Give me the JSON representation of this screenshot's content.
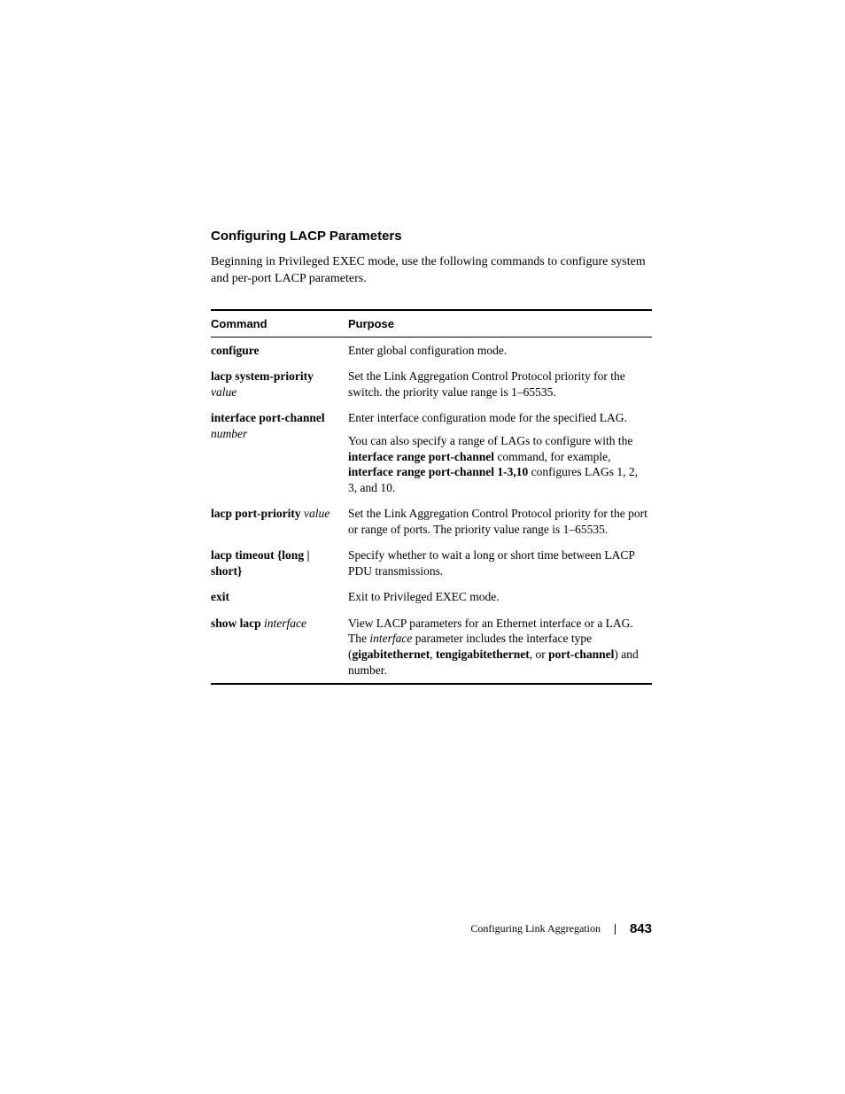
{
  "heading": "Configuring LACP Parameters",
  "intro": "Beginning in Privileged EXEC mode, use the following commands to configure system and per-port LACP parameters.",
  "table": {
    "headers": {
      "command": "Command",
      "purpose": "Purpose"
    },
    "rows": [
      {
        "command_html": "<span class='bold'>configure</span>",
        "purpose_html": "Enter global configuration mode."
      },
      {
        "command_html": "<span class='bold'>lacp system-priority</span> <span class='italic'>value</span>",
        "purpose_html": "Set the Link Aggregation Control Protocol priority for the switch. the priority value range is 1–65535."
      },
      {
        "command_html": "<span class='bold'>interface port-channel</span> <span class='italic'>number</span>",
        "purpose_html": "<div class='purpose-para'>Enter interface configuration mode for the specified LAG.</div><div class='purpose-para'>You can also specify a range of LAGs to configure with the <span class='bold'>interface range port-channel</span> command, for example, <span class='bold'>interface range port-channel 1-3,10</span> configures LAGs 1, 2, 3, and 10.</div>"
      },
      {
        "command_html": "<span class='bold'>lacp port-priority</span> <span class='italic'>value</span>",
        "purpose_html": "Set the Link Aggregation Control Protocol priority for the port or range of ports. The priority value range is 1–65535."
      },
      {
        "command_html": "<span class='bold'>lacp timeout {long | short}</span>",
        "purpose_html": "Specify whether to wait a long or short time between LACP PDU transmissions."
      },
      {
        "command_html": "<span class='bold'>exit</span>",
        "purpose_html": "Exit to Privileged EXEC mode."
      },
      {
        "command_html": "<span class='bold'>show lacp</span> <span class='italic'>interface</span>",
        "purpose_html": "View LACP parameters for an Ethernet interface or a LAG. The <span class='italic'>interface</span> parameter includes the interface type (<span class='bold'>gigabitethernet</span>, <span class='bold'>tengigabitethernet</span>, or <span class='bold'>port-channel</span>) and number."
      }
    ]
  },
  "footer": {
    "title": "Configuring Link Aggregation",
    "page": "843"
  }
}
